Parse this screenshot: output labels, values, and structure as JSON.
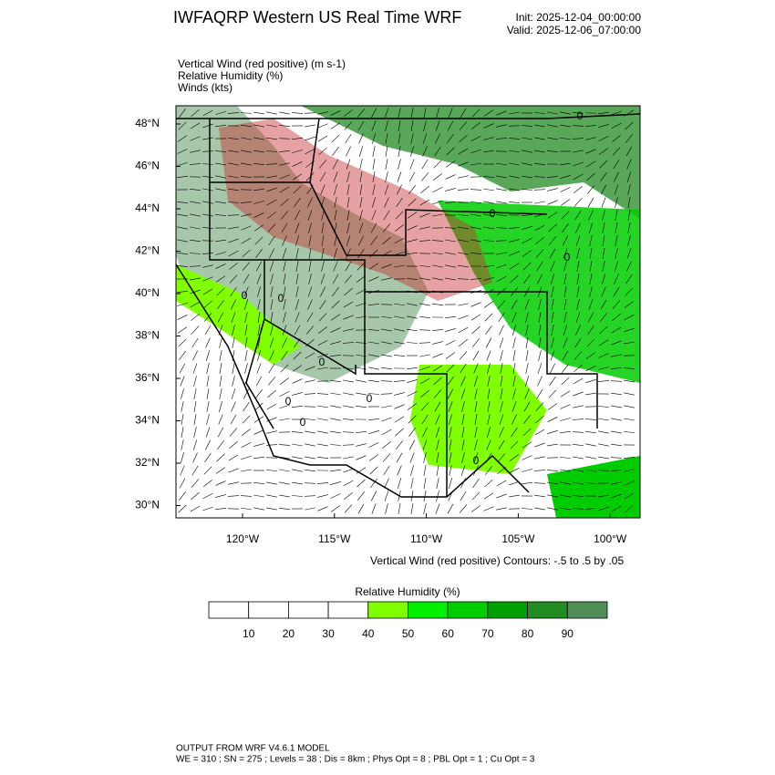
{
  "header": {
    "title": "IWFAQRP Western US Real Time WRF",
    "init": "Init: 2025-12-04_00:00:00",
    "valid": "Valid: 2025-12-06_07:00:00"
  },
  "fields": [
    "Vertical Wind (red positive)   (m s-1)",
    "Relative Humidity   (%)",
    "Winds   (kts)"
  ],
  "map": {
    "lat_labels": [
      "48°N",
      "46°N",
      "44°N",
      "42°N",
      "40°N",
      "38°N",
      "36°N",
      "34°N",
      "32°N",
      "30°N"
    ],
    "lon_labels": [
      "120°W",
      "115°W",
      "110°W",
      "105°W",
      "100°W"
    ],
    "contour_labels": [
      "0",
      "0",
      "0",
      "0",
      "0",
      "0",
      "0",
      "0",
      "0",
      "0"
    ],
    "contour_note": "Vertical Wind (red positive) Contours: -.5 to .5 by .05"
  },
  "colorbar": {
    "title": "Relative Humidity  (%)",
    "colors": [
      "#ffffff",
      "#ffffff",
      "#ffffff",
      "#ffffff",
      "#80ff00",
      "#00f000",
      "#00cc00",
      "#00a000",
      "#228b22",
      "#4f8f57"
    ],
    "labels": [
      "10",
      "20",
      "30",
      "40",
      "50",
      "60",
      "70",
      "80",
      "90"
    ]
  },
  "footer": {
    "line1": "OUTPUT FROM WRF V4.6.1 MODEL",
    "line2": "WE = 310 ; SN = 275 ; Levels = 38 ; Dis = 8km ; Phys Opt = 8 ; PBL Opt = 1 ; Cu Opt = 3"
  }
}
